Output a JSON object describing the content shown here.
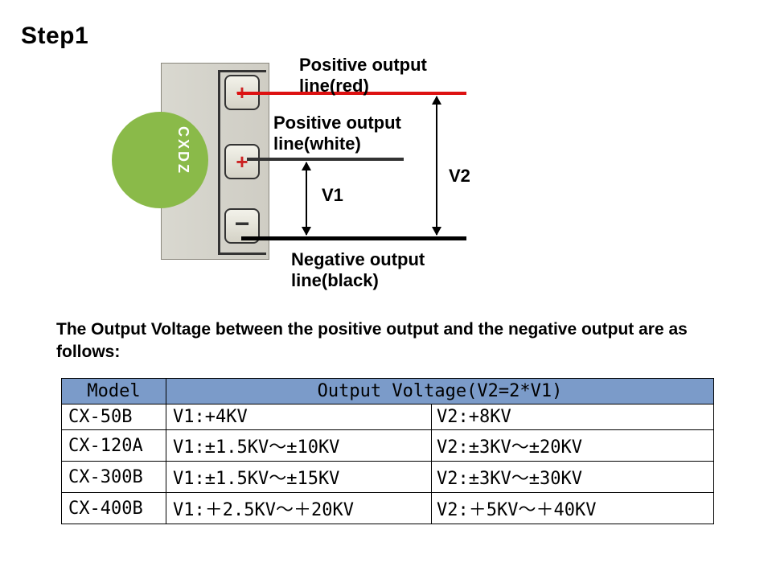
{
  "step_title": "Step1",
  "device_label": "CXDZ",
  "labels": {
    "pos_red_l1": "Positive output",
    "pos_red_l2": "line(red)",
    "pos_white_l1": "Positive output",
    "pos_white_l2": "line(white)",
    "neg_l1": "Negative output",
    "neg_l2": "line(black)",
    "v1": "V1",
    "v2": "V2"
  },
  "colors": {
    "red_line": "#d11111",
    "white_line_drawn": "#333333",
    "black_line": "#000000",
    "header_bg": "#7b9bc9"
  },
  "description": "The Output Voltage  between the positive output  and the negative output are as follows:",
  "table": {
    "header_model": "Model",
    "header_output": "Output Voltage(V2=2*V1)",
    "rows": [
      {
        "model": "CX-50B",
        "v1": "V1:+4KV",
        "v2": "V2:+8KV"
      },
      {
        "model": "CX-120A",
        "v1": "V1:±1.5KV～±10KV",
        "v2": "V2:±3KV～±20KV"
      },
      {
        "model": "CX-300B",
        "v1": "V1:±1.5KV～±15KV",
        "v2": "V2:±3KV～±30KV"
      },
      {
        "model": "CX-400B",
        "v1": "V1:＋2.5KV～＋20KV",
        "v2": "V2:＋5KV～＋40KV"
      }
    ]
  }
}
